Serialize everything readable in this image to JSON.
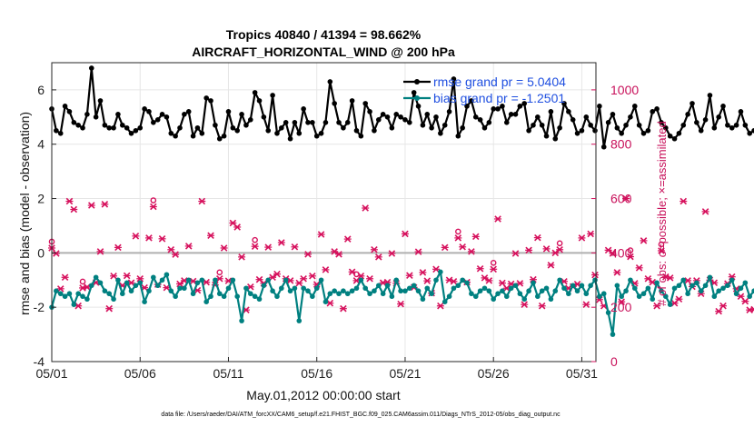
{
  "chart_data": {
    "type": "line",
    "title": [
      "Tropics 40840 / 41394 = 98.662%",
      "AIRCRAFT_HORIZONTAL_WIND @ 200 hPa"
    ],
    "xlabel": "May.01,2012 00:00:00 start",
    "ylabel": "rmse and bias (model - observation)",
    "y2label": "# of obs: o=possible; ×=assimilated",
    "xlim": [
      0,
      30.8
    ],
    "ylim": [
      -4,
      7
    ],
    "y2lim": [
      0,
      1100
    ],
    "x_ticks": [
      0,
      5,
      10,
      15,
      20,
      25,
      30
    ],
    "x_tick_labels": [
      "05/01",
      "05/06",
      "05/11",
      "05/16",
      "05/21",
      "05/26",
      "05/31"
    ],
    "y_ticks": [
      -4,
      -2,
      0,
      2,
      4,
      6
    ],
    "y_tick_labels": [
      "-4",
      "-2",
      "0",
      "2",
      "4",
      "6"
    ],
    "y2_ticks": [
      0,
      200,
      400,
      600,
      800,
      1000
    ],
    "y2_tick_labels": [
      "0",
      "200",
      "400",
      "600",
      "800",
      "1000"
    ],
    "grid": true,
    "legend_position": "top-right",
    "x_step_days": 0.25,
    "colors": {
      "rmse": "#000000",
      "bias": "#008080",
      "obs": "#d6105c",
      "zero": "#b0b0b0"
    },
    "series": [
      {
        "name": "rmse grand pr = 5.0404",
        "axis": "left",
        "color": "#000000",
        "values": [
          5.3,
          4.5,
          4.4,
          5.4,
          5.2,
          4.8,
          4.7,
          4.6,
          5.1,
          6.8,
          5.0,
          5.6,
          4.7,
          4.6,
          4.6,
          5.1,
          4.7,
          4.6,
          4.4,
          4.5,
          4.6,
          5.3,
          5.2,
          4.8,
          4.9,
          5.1,
          5.0,
          4.4,
          4.3,
          4.6,
          5.1,
          5.2,
          4.3,
          4.6,
          4.4,
          5.7,
          5.6,
          4.7,
          4.2,
          4.3,
          5.2,
          4.6,
          4.5,
          5.1,
          4.7,
          4.9,
          5.9,
          5.6,
          5.0,
          4.5,
          5.8,
          4.4,
          4.6,
          4.8,
          4.2,
          4.8,
          4.4,
          5.3,
          4.8,
          4.8,
          4.3,
          4.4,
          4.8,
          6.3,
          5.5,
          4.8,
          4.6,
          4.8,
          5.6,
          4.5,
          4.3,
          5.5,
          5.2,
          4.5,
          4.9,
          5.1,
          5.0,
          4.6,
          5.1,
          5.0,
          4.9,
          4.8,
          5.9,
          5.4,
          4.7,
          5.1,
          4.6,
          5.0,
          4.4,
          4.7,
          5.2,
          6.4,
          4.3,
          4.6,
          5.4,
          5.6,
          5.0,
          4.9,
          4.6,
          4.8,
          5.3,
          5.3,
          5.4,
          4.8,
          5.1,
          5.1,
          5.4,
          5.5,
          4.5,
          4.7,
          5.0,
          4.7,
          4.3,
          5.2,
          4.2,
          4.6,
          5.5,
          5.2,
          4.9,
          4.4,
          4.5,
          5.0,
          4.7,
          4.5,
          5.4,
          3.9,
          4.8,
          5.1,
          4.6,
          4.4,
          4.7,
          5.0,
          5.4,
          4.7,
          4.4,
          4.5,
          5.2,
          5.3,
          4.8,
          4.6,
          4.3,
          4.2,
          4.4,
          4.7,
          5.1,
          5.5,
          4.8,
          4.5,
          4.9,
          5.8,
          4.6,
          5.0,
          5.4,
          4.7,
          4.6,
          4.7,
          5.2,
          4.7,
          4.4,
          4.5,
          4.4,
          4.3,
          5.3,
          4.6,
          4.4,
          4.6,
          5.4,
          4.7,
          4.9,
          4.6,
          4.2,
          4.6,
          6.2,
          4.8,
          4.6,
          4.6,
          4.2,
          5.4,
          3.9,
          5.3
        ]
      },
      {
        "name": "bias grand pr = -1.2501",
        "axis": "left",
        "color": "#008080",
        "values": [
          -2.0,
          -1.4,
          -1.5,
          -1.6,
          -1.5,
          -1.9,
          -1.5,
          -1.6,
          -1.7,
          -1.2,
          -0.9,
          -1.1,
          -1.4,
          -1.5,
          -1.7,
          -1.0,
          -1.5,
          -1.1,
          -1.4,
          -1.2,
          -1.1,
          -1.8,
          -1.4,
          -0.9,
          -1.2,
          -1.0,
          -0.8,
          -1.4,
          -1.6,
          -1.3,
          -1.3,
          -1.0,
          -1.5,
          -1.1,
          -1.0,
          -1.8,
          -1.6,
          -1.0,
          -1.5,
          -1.6,
          -1.3,
          -1.0,
          -1.6,
          -2.5,
          -1.3,
          -1.5,
          -1.6,
          -1.7,
          -1.2,
          -1.0,
          -1.4,
          -1.6,
          -1.3,
          -1.0,
          -1.4,
          -1.3,
          -2.5,
          -1.3,
          -1.4,
          -1.6,
          -1.3,
          -1.0,
          -1.8,
          -1.5,
          -1.4,
          -1.5,
          -1.4,
          -1.5,
          -1.4,
          -1.3,
          -1.0,
          -1.3,
          -1.5,
          -1.4,
          -1.2,
          -1.5,
          -1.2,
          -1.6,
          -1.0,
          -1.4,
          -1.4,
          -1.3,
          -1.2,
          -1.4,
          -1.7,
          -1.3,
          -1.5,
          -1.0,
          -0.7,
          -1.8,
          -1.6,
          -1.3,
          -1.2,
          -1.0,
          -1.1,
          -1.5,
          -1.6,
          -1.4,
          -1.3,
          -1.4,
          -1.7,
          -1.5,
          -1.4,
          -1.6,
          -1.3,
          -1.2,
          -1.5,
          -1.7,
          -1.4,
          -1.1,
          -1.6,
          -1.4,
          -1.3,
          -1.7,
          -1.4,
          -1.0,
          -1.3,
          -1.5,
          -1.2,
          -1.4,
          -1.2,
          -1.5,
          -1.2,
          -1.0,
          -1.6,
          -1.5,
          -2.2,
          -3.0,
          -1.2,
          -1.6,
          -1.4,
          -1.0,
          -1.3,
          -1.6,
          -1.5,
          -1.3,
          -1.7,
          -1.1,
          -1.4,
          -1.6,
          -1.9,
          -1.3,
          -1.2,
          -1.0,
          -1.5,
          -1.2,
          -1.1,
          -1.4,
          -1.2,
          -0.9,
          -1.6,
          -1.4,
          -1.3,
          -1.2,
          -1.0,
          -1.5,
          -1.3,
          -1.1,
          -1.6,
          -1.4,
          -1.2,
          -0.9,
          -1.5,
          -1.3,
          -1.1,
          -1.4,
          -1.6,
          -1.1,
          -1.0,
          -0.8,
          -1.2,
          -1.1,
          -0.7,
          -1.4,
          -0.6,
          -1.3,
          -1.7,
          -1.2,
          -0.9,
          -1.5,
          -1.3,
          -1.4,
          -1.1,
          -1.6,
          -1.6,
          -1.1,
          -1.2,
          -1.5,
          -1.2,
          -1.7,
          -1.0,
          -1.3,
          -1.5,
          -1.4,
          -1.2,
          -1.3,
          -1.6,
          -1.4,
          -1.2,
          -1.5,
          -1.3,
          -1.4,
          -1.5,
          -1.6,
          -1.3,
          -1.2,
          -1.1,
          -1.3,
          -1.7,
          -1.4,
          -1.6,
          -1.5,
          -1.3,
          -1.4,
          -1.6,
          -1.5,
          -1.4,
          -1.7,
          -1.2,
          -1.4,
          -1.3,
          -1.2,
          -1.3,
          -1.5,
          -1.4,
          -1.3,
          -1.5,
          -1.6,
          -1.4,
          -1.2,
          -1.6,
          -1.3,
          -1.4,
          -1.5,
          -1.5,
          -2.2
        ]
      },
      {
        "name": "obs count",
        "axis": "right",
        "color": "#d6105c",
        "marker": "x/o",
        "values": [
          418,
          398,
          268,
          310,
          590,
          560,
          205,
          271,
          274,
          575,
          291,
          405,
          579,
          195,
          315,
          420,
          280,
          316,
          290,
          462,
          305,
          272,
          455,
          570,
          284,
          452,
          272,
          412,
          394,
          286,
          298,
          425,
          296,
          262,
          590,
          292,
          464,
          282,
          305,
          418,
          297,
          510,
          495,
          385,
          190,
          275,
          424,
          302,
          288,
          421,
          310,
          322,
          438,
          305,
          298,
          422,
          289,
          305,
          395,
          315,
          284,
          468,
          338,
          215,
          405,
          395,
          195,
          451,
          330,
          298,
          315,
          565,
          305,
          412,
          385,
          290,
          292,
          398,
          288,
          212,
          470,
          317,
          273,
          404,
          328,
          297,
          252,
          340,
          205,
          420,
          300,
          295,
          455,
          422,
          292,
          405,
          460,
          342,
          308,
          298,
          340,
          525,
          289,
          270,
          286,
          398,
          288,
          210,
          410,
          302,
          456,
          205,
          415,
          355,
          400,
          412,
          295,
          270,
          276,
          285,
          455,
          210,
          470,
          319,
          228,
          205,
          410,
          398,
          328,
          220,
          600,
          386,
          288,
          345,
          445,
          305,
          292,
          205,
          408,
          312,
          308,
          215,
          230,
          590,
          298,
          276,
          298,
          250,
          552,
          300,
          290,
          185,
          205,
          287,
          312,
          268,
          240,
          222,
          190,
          192,
          300,
          262,
          204,
          265,
          314,
          276,
          222,
          0
        ]
      }
    ]
  },
  "footer_text": "data file: /Users/raeder/DAI/ATM_forcXX/CAM6_setup/f.e21.FHIST_BGC.f09_025.CAM6assim.011/Diags_NTrS_2012-05/obs_diag_output.nc"
}
